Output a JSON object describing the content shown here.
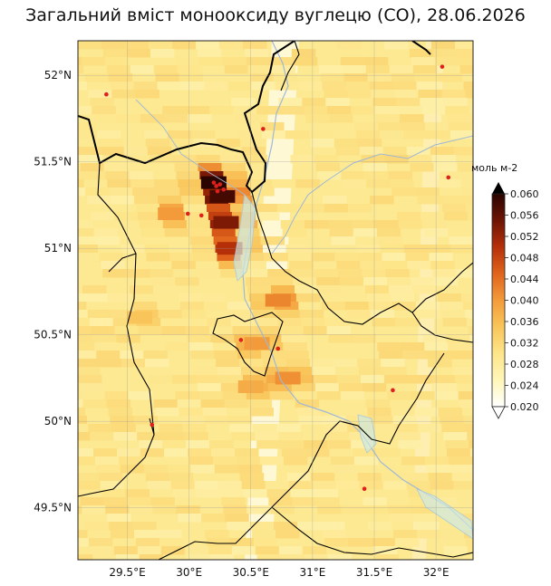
{
  "title": "Загальний вміст монооксиду вуглецю (CO), 28.06.2026",
  "colorbar": {
    "unit": "моль м-2",
    "ticks": [
      "0.060",
      "0.056",
      "0.052",
      "0.048",
      "0.044",
      "0.040",
      "0.036",
      "0.032",
      "0.028",
      "0.024",
      "0.020"
    ],
    "range": [
      0.02,
      0.06
    ],
    "extend": "both",
    "colors": [
      "#ffffff",
      "#fff6b8",
      "#fde58a",
      "#f9c55a",
      "#f39b3a",
      "#e0641c",
      "#b53009",
      "#6e1405",
      "#2a0500"
    ]
  },
  "axes": {
    "lon_range": [
      29.1,
      32.3
    ],
    "lat_range": [
      49.2,
      52.2
    ],
    "lon_ticks": [
      {
        "value": 29.5,
        "label": "29.5°E"
      },
      {
        "value": 30.0,
        "label": "30°E"
      },
      {
        "value": 30.5,
        "label": "30.5°E"
      },
      {
        "value": 31.0,
        "label": "31°E"
      },
      {
        "value": 31.5,
        "label": "31.5°E"
      },
      {
        "value": 32.0,
        "label": "32°E"
      }
    ],
    "lat_ticks": [
      {
        "value": 52.0,
        "label": "52°N"
      },
      {
        "value": 51.5,
        "label": "51.5°N"
      },
      {
        "value": 51.0,
        "label": "51°N"
      },
      {
        "value": 50.5,
        "label": "50.5°N"
      },
      {
        "value": 50.0,
        "label": "50°N"
      },
      {
        "value": 49.5,
        "label": "49.5°N"
      }
    ],
    "gridlines": true
  },
  "hotspots": [
    {
      "lon": 30.2,
      "lat": 51.38,
      "value": 0.06
    },
    {
      "lon": 30.27,
      "lat": 51.3,
      "value": 0.058
    },
    {
      "lon": 30.3,
      "lat": 51.15,
      "value": 0.054
    },
    {
      "lon": 30.33,
      "lat": 51.0,
      "value": 0.05
    },
    {
      "lon": 30.72,
      "lat": 50.7,
      "value": 0.042
    },
    {
      "lon": 30.55,
      "lat": 50.45,
      "value": 0.04
    },
    {
      "lon": 30.8,
      "lat": 50.25,
      "value": 0.041
    },
    {
      "lon": 30.5,
      "lat": 50.2,
      "value": 0.038
    },
    {
      "lon": 29.85,
      "lat": 51.2,
      "value": 0.04
    },
    {
      "lon": 29.6,
      "lat": 50.6,
      "value": 0.035
    }
  ],
  "fire_points": [
    {
      "lon": 30.2,
      "lat": 51.38
    },
    {
      "lon": 30.22,
      "lat": 51.36
    },
    {
      "lon": 30.25,
      "lat": 51.37
    },
    {
      "lon": 30.28,
      "lat": 51.34
    },
    {
      "lon": 29.99,
      "lat": 51.2
    },
    {
      "lon": 30.1,
      "lat": 51.19
    },
    {
      "lon": 30.23,
      "lat": 51.33
    },
    {
      "lon": 29.33,
      "lat": 51.89
    },
    {
      "lon": 30.6,
      "lat": 51.69
    },
    {
      "lon": 32.05,
      "lat": 52.05
    },
    {
      "lon": 32.1,
      "lat": 51.41
    },
    {
      "lon": 30.72,
      "lat": 50.42
    },
    {
      "lon": 31.65,
      "lat": 50.18
    },
    {
      "lon": 29.7,
      "lat": 49.98
    },
    {
      "lon": 31.42,
      "lat": 49.61
    },
    {
      "lon": 30.42,
      "lat": 50.47
    }
  ]
}
